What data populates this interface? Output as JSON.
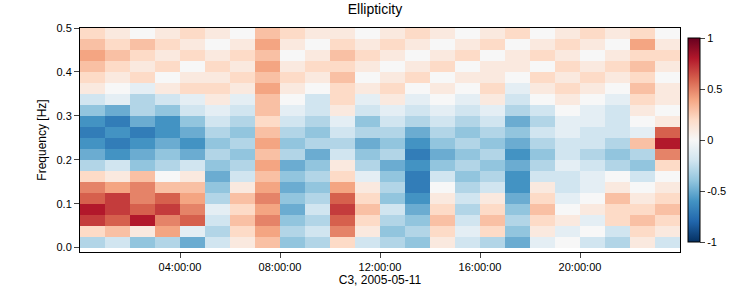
{
  "chart_data": {
    "type": "heatmap",
    "title": "Ellipticity",
    "x_label": "C3, 2005-05-11",
    "y_label": "Frequency [Hz]",
    "x": [
      0.5,
      1.5,
      2.5,
      3.5,
      4.5,
      5.5,
      6.5,
      7.5,
      8.5,
      9.5,
      10.5,
      11.5,
      12.5,
      13.5,
      14.5,
      15.5,
      16.5,
      17.5,
      18.5,
      19.5,
      20.5,
      21.5,
      22.5,
      23.5
    ],
    "y": [
      0.0125,
      0.0375,
      0.0625,
      0.0875,
      0.1125,
      0.1375,
      0.1625,
      0.1875,
      0.2125,
      0.2375,
      0.2625,
      0.2875,
      0.3125,
      0.3375,
      0.3625,
      0.3875,
      0.4125,
      0.4375,
      0.4625,
      0.4875
    ],
    "cells": [
      [
        -0.3,
        -0.2,
        -0.4,
        -0.3,
        -0.5,
        -0.2,
        0.1,
        0.3,
        -0.4,
        -0.3,
        0.2,
        -0.2,
        -0.3,
        -0.4,
        0.1,
        -0.2,
        -0.3,
        -0.5,
        -0.1,
        0.0,
        -0.2,
        -0.3,
        0.1,
        -0.2
      ],
      [
        0.2,
        0.3,
        0.1,
        0.4,
        -0.1,
        -0.3,
        0.2,
        0.4,
        -0.3,
        -0.2,
        0.5,
        0.1,
        -0.4,
        -0.3,
        0.2,
        -0.1,
        0.2,
        -0.4,
        0.1,
        -0.1,
        0.0,
        -0.2,
        0.2,
        0.1
      ],
      [
        0.7,
        0.6,
        0.8,
        0.5,
        0.6,
        -0.2,
        0.3,
        0.5,
        -0.4,
        -0.3,
        0.6,
        0.2,
        -0.3,
        -0.4,
        0.3,
        -0.2,
        0.3,
        -0.3,
        0.2,
        0.1,
        -0.1,
        0.2,
        0.3,
        0.2
      ],
      [
        0.8,
        0.7,
        0.6,
        0.7,
        0.5,
        -0.1,
        0.2,
        0.4,
        -0.5,
        -0.2,
        0.7,
        0.3,
        -0.2,
        -0.5,
        0.2,
        -0.3,
        0.2,
        -0.4,
        0.3,
        0.0,
        0.1,
        0.2,
        0.2,
        0.3
      ],
      [
        0.6,
        0.7,
        0.5,
        0.6,
        0.4,
        -0.3,
        0.3,
        0.5,
        -0.4,
        -0.3,
        0.6,
        0.2,
        -0.4,
        -0.6,
        0.1,
        -0.2,
        0.1,
        -0.5,
        0.2,
        -0.1,
        0.0,
        0.3,
        0.1,
        0.2
      ],
      [
        0.5,
        0.4,
        0.5,
        0.3,
        0.3,
        -0.4,
        0.1,
        0.4,
        -0.5,
        -0.4,
        0.4,
        0.1,
        -0.3,
        -0.7,
        0.0,
        -0.3,
        -0.2,
        -0.6,
        0.1,
        -0.2,
        -0.1,
        0.1,
        0.0,
        0.1
      ],
      [
        0.2,
        0.1,
        0.3,
        0.0,
        0.1,
        -0.5,
        -0.2,
        0.3,
        -0.4,
        -0.3,
        0.2,
        -0.1,
        -0.4,
        -0.7,
        -0.2,
        -0.4,
        -0.3,
        -0.6,
        -0.2,
        -0.2,
        -0.1,
        0.0,
        -0.2,
        0.0
      ],
      [
        -0.3,
        -0.2,
        -0.4,
        -0.3,
        -0.2,
        -0.4,
        -0.3,
        0.4,
        -0.5,
        -0.4,
        0.1,
        -0.3,
        -0.5,
        -0.6,
        -0.4,
        -0.3,
        -0.4,
        -0.5,
        -0.3,
        -0.1,
        -0.2,
        -0.3,
        -0.4,
        0.2
      ],
      [
        -0.5,
        -0.6,
        -0.5,
        -0.4,
        -0.5,
        -0.3,
        -0.4,
        0.3,
        -0.3,
        -0.5,
        -0.2,
        -0.4,
        -0.3,
        -0.7,
        -0.5,
        -0.4,
        -0.3,
        -0.6,
        -0.4,
        -0.2,
        -0.3,
        -0.4,
        -0.3,
        0.5
      ],
      [
        -0.6,
        -0.7,
        -0.6,
        -0.5,
        -0.6,
        -0.4,
        -0.3,
        0.4,
        -0.4,
        -0.3,
        -0.3,
        -0.5,
        -0.4,
        -0.6,
        -0.4,
        -0.3,
        -0.4,
        -0.5,
        -0.3,
        -0.2,
        -0.2,
        -0.3,
        0.3,
        0.8
      ],
      [
        -0.7,
        -0.6,
        -0.7,
        -0.6,
        -0.5,
        -0.3,
        -0.4,
        0.3,
        -0.3,
        -0.4,
        -0.2,
        -0.3,
        -0.3,
        -0.5,
        -0.3,
        -0.4,
        -0.3,
        -0.4,
        -0.2,
        -0.1,
        -0.2,
        -0.2,
        -0.1,
        0.6
      ],
      [
        -0.6,
        -0.7,
        -0.5,
        -0.6,
        -0.4,
        -0.2,
        -0.3,
        0.2,
        -0.2,
        -0.3,
        -0.1,
        -0.4,
        -0.2,
        -0.3,
        -0.2,
        -0.3,
        -0.2,
        -0.5,
        -0.3,
        -0.1,
        -0.1,
        -0.2,
        0.0,
        0.1
      ],
      [
        -0.4,
        -0.5,
        -0.3,
        -0.4,
        -0.2,
        -0.1,
        -0.2,
        0.3,
        -0.1,
        -0.2,
        0.1,
        -0.2,
        -0.1,
        -0.2,
        -0.1,
        -0.2,
        -0.1,
        -0.3,
        -0.2,
        0.0,
        -0.1,
        -0.2,
        0.1,
        0.0
      ],
      [
        -0.2,
        -0.1,
        -0.3,
        -0.2,
        -0.1,
        0.1,
        -0.1,
        0.3,
        0.0,
        -0.2,
        0.2,
        -0.1,
        0.1,
        -0.1,
        0.0,
        -0.1,
        0.1,
        -0.2,
        0.0,
        0.1,
        0.0,
        -0.1,
        0.2,
        0.1
      ],
      [
        0.1,
        0.0,
        -0.1,
        0.1,
        0.2,
        0.2,
        0.1,
        0.4,
        0.1,
        0.0,
        0.2,
        0.1,
        0.2,
        0.0,
        0.1,
        0.0,
        0.2,
        -0.1,
        0.1,
        0.2,
        0.1,
        0.0,
        0.3,
        0.1
      ],
      [
        0.2,
        0.1,
        0.2,
        0.0,
        0.1,
        0.1,
        0.2,
        0.3,
        0.2,
        0.1,
        0.3,
        0.0,
        0.1,
        0.2,
        0.0,
        0.1,
        0.1,
        0.0,
        0.2,
        0.1,
        0.2,
        0.1,
        0.2,
        0.0
      ],
      [
        0.3,
        0.2,
        0.1,
        0.2,
        0.0,
        0.2,
        0.1,
        0.4,
        0.1,
        0.2,
        0.2,
        0.1,
        0.0,
        0.1,
        0.2,
        0.0,
        0.1,
        0.1,
        0.0,
        0.2,
        0.1,
        0.2,
        0.3,
        0.1
      ],
      [
        0.4,
        0.3,
        0.2,
        0.1,
        0.2,
        0.1,
        0.2,
        0.3,
        0.0,
        0.1,
        0.3,
        0.2,
        0.1,
        0.0,
        0.1,
        0.2,
        0.0,
        0.1,
        0.2,
        0.1,
        0.0,
        0.1,
        0.2,
        0.2
      ],
      [
        0.3,
        0.2,
        0.3,
        0.2,
        0.1,
        0.0,
        0.1,
        0.4,
        0.1,
        0.0,
        0.2,
        0.1,
        0.2,
        0.1,
        0.0,
        0.1,
        0.2,
        0.0,
        0.1,
        0.2,
        0.1,
        0.0,
        0.4,
        0.1
      ],
      [
        0.2,
        0.1,
        0.0,
        0.1,
        0.2,
        0.1,
        0.0,
        0.3,
        0.2,
        0.1,
        0.1,
        0.0,
        0.1,
        0.2,
        0.1,
        0.0,
        0.1,
        0.2,
        0.0,
        0.1,
        0.2,
        0.1,
        0.2,
        0.0
      ]
    ],
    "xlim": [
      0,
      24
    ],
    "xticks": [
      {
        "value": 4,
        "label": "04:00:00"
      },
      {
        "value": 8,
        "label": "08:00:00"
      },
      {
        "value": 12,
        "label": "12:00:00"
      },
      {
        "value": 16,
        "label": "16:00:00"
      },
      {
        "value": 20,
        "label": "20:00:00"
      }
    ],
    "ylim": [
      -0.01,
      0.5
    ],
    "yticks": [
      {
        "value": 0,
        "label": "0.0"
      },
      0.1,
      0.2,
      0.3,
      0.4,
      0.5
    ],
    "colorbar_range": [
      -1,
      1
    ],
    "colorbar_ticks": [
      -1,
      -0.5,
      0,
      0.5,
      1
    ]
  }
}
